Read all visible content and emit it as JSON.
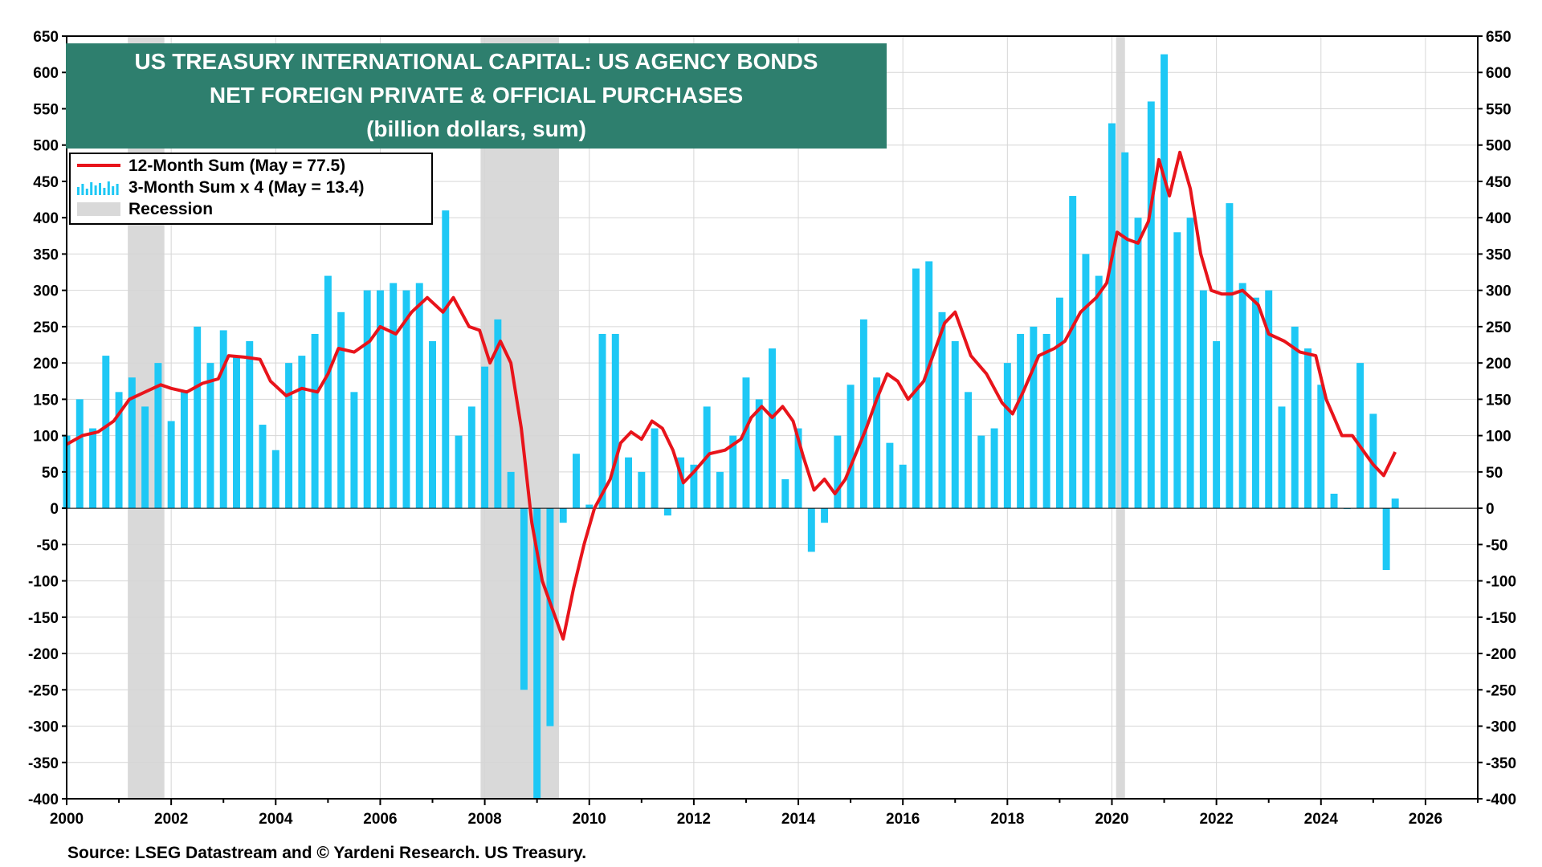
{
  "chart_data": {
    "type": "bar+line",
    "title_lines": [
      "US TREASURY INTERNATIONAL CAPITAL: US AGENCY BONDS",
      "NET FOREIGN PRIVATE & OFFICIAL PURCHASES",
      "(billion dollars, sum)"
    ],
    "source": "Source: LSEG Datastream and © Yardeni Research. US Treasury.",
    "xlim": [
      2000,
      2027
    ],
    "x_ticks": [
      "2000",
      "2002",
      "2004",
      "2006",
      "2008",
      "2010",
      "2012",
      "2014",
      "2016",
      "2018",
      "2020",
      "2022",
      "2024",
      "2026"
    ],
    "ylim": [
      -400,
      650
    ],
    "y_ticks": [
      650,
      600,
      550,
      500,
      450,
      400,
      350,
      300,
      250,
      200,
      150,
      100,
      50,
      0,
      -50,
      -100,
      -150,
      -200,
      -250,
      -300,
      -350,
      -400
    ],
    "grid": true,
    "legend_position": "top-left",
    "colors": {
      "line": "#e8141b",
      "bars": "#1ec8f5",
      "recession": "#d9d9d9",
      "title_bg": "#2e7f6e",
      "zero_line": "#000000"
    },
    "legend": [
      {
        "label": "12-Month Sum (May = 77.5)",
        "kind": "line"
      },
      {
        "label": "3-Month Sum x 4 (May = 13.4)",
        "kind": "bars"
      },
      {
        "label": "Recession",
        "kind": "shade"
      }
    ],
    "recessions": [
      [
        2001.17,
        2001.87
      ],
      [
        2007.92,
        2009.42
      ],
      [
        2020.08,
        2020.25
      ]
    ],
    "series": [
      {
        "name": "12-Month Sum (May = 77.5)",
        "type": "line",
        "x": [
          2000.0,
          2000.3,
          2000.6,
          2000.9,
          2001.2,
          2001.5,
          2001.8,
          2002.0,
          2002.3,
          2002.6,
          2002.9,
          2003.1,
          2003.4,
          2003.7,
          2003.9,
          2004.2,
          2004.5,
          2004.8,
          2005.0,
          2005.2,
          2005.5,
          2005.8,
          2006.0,
          2006.3,
          2006.6,
          2006.9,
          2007.2,
          2007.4,
          2007.7,
          2007.9,
          2008.1,
          2008.3,
          2008.5,
          2008.7,
          2008.9,
          2009.1,
          2009.3,
          2009.5,
          2009.7,
          2009.9,
          2010.1,
          2010.4,
          2010.6,
          2010.8,
          2011.0,
          2011.2,
          2011.4,
          2011.6,
          2011.8,
          2012.0,
          2012.3,
          2012.6,
          2012.9,
          2013.1,
          2013.3,
          2013.5,
          2013.7,
          2013.9,
          2014.1,
          2014.3,
          2014.5,
          2014.7,
          2014.9,
          2015.1,
          2015.3,
          2015.5,
          2015.7,
          2015.9,
          2016.1,
          2016.4,
          2016.6,
          2016.8,
          2017.0,
          2017.3,
          2017.6,
          2017.9,
          2018.1,
          2018.3,
          2018.6,
          2018.9,
          2019.1,
          2019.4,
          2019.7,
          2019.9,
          2020.1,
          2020.3,
          2020.5,
          2020.7,
          2020.9,
          2021.1,
          2021.3,
          2021.5,
          2021.7,
          2021.9,
          2022.1,
          2022.3,
          2022.5,
          2022.8,
          2023.0,
          2023.3,
          2023.6,
          2023.9,
          2024.1,
          2024.4,
          2024.6,
          2024.8,
          2025.0,
          2025.2,
          2025.42
        ],
        "values": [
          88,
          100,
          105,
          120,
          150,
          160,
          170,
          165,
          160,
          172,
          178,
          210,
          208,
          205,
          175,
          155,
          165,
          160,
          185,
          220,
          215,
          230,
          250,
          240,
          270,
          290,
          270,
          290,
          250,
          245,
          200,
          230,
          200,
          110,
          -20,
          -100,
          -140,
          -180,
          -110,
          -50,
          0,
          40,
          90,
          105,
          95,
          120,
          110,
          80,
          35,
          50,
          75,
          80,
          95,
          125,
          140,
          125,
          140,
          120,
          70,
          25,
          40,
          20,
          40,
          75,
          110,
          150,
          185,
          175,
          150,
          175,
          215,
          255,
          270,
          210,
          185,
          145,
          130,
          160,
          210,
          220,
          230,
          270,
          290,
          310,
          380,
          370,
          365,
          395,
          480,
          430,
          490,
          440,
          350,
          300,
          295,
          295,
          300,
          280,
          240,
          230,
          215,
          210,
          150,
          100,
          100,
          80,
          60,
          45,
          77.5
        ]
      },
      {
        "name": "3-Month Sum x 4 (May = 13.4)",
        "type": "bar",
        "x": [
          2000.0,
          2000.25,
          2000.5,
          2000.75,
          2001.0,
          2001.25,
          2001.5,
          2001.75,
          2002.0,
          2002.25,
          2002.5,
          2002.75,
          2003.0,
          2003.25,
          2003.5,
          2003.75,
          2004.0,
          2004.25,
          2004.5,
          2004.75,
          2005.0,
          2005.25,
          2005.5,
          2005.75,
          2006.0,
          2006.25,
          2006.5,
          2006.75,
          2007.0,
          2007.25,
          2007.5,
          2007.75,
          2008.0,
          2008.25,
          2008.5,
          2008.75,
          2009.0,
          2009.25,
          2009.5,
          2009.75,
          2010.0,
          2010.25,
          2010.5,
          2010.75,
          2011.0,
          2011.25,
          2011.5,
          2011.75,
          2012.0,
          2012.25,
          2012.5,
          2012.75,
          2013.0,
          2013.25,
          2013.5,
          2013.75,
          2014.0,
          2014.25,
          2014.5,
          2014.75,
          2015.0,
          2015.25,
          2015.5,
          2015.75,
          2016.0,
          2016.25,
          2016.5,
          2016.75,
          2017.0,
          2017.25,
          2017.5,
          2017.75,
          2018.0,
          2018.25,
          2018.5,
          2018.75,
          2019.0,
          2019.25,
          2019.5,
          2019.75,
          2020.0,
          2020.25,
          2020.5,
          2020.75,
          2021.0,
          2021.25,
          2021.5,
          2021.75,
          2022.0,
          2022.25,
          2022.5,
          2022.75,
          2023.0,
          2023.25,
          2023.5,
          2023.75,
          2024.0,
          2024.25,
          2024.5,
          2024.75,
          2025.0,
          2025.25,
          2025.42
        ],
        "values": [
          100,
          150,
          110,
          210,
          160,
          180,
          140,
          200,
          120,
          160,
          250,
          200,
          245,
          210,
          230,
          115,
          80,
          200,
          210,
          240,
          320,
          270,
          160,
          300,
          300,
          310,
          300,
          310,
          230,
          410,
          100,
          140,
          195,
          260,
          50,
          -250,
          -400,
          -300,
          -20,
          75,
          5,
          240,
          240,
          70,
          50,
          110,
          -10,
          70,
          60,
          140,
          50,
          100,
          180,
          150,
          220,
          40,
          110,
          -60,
          -20,
          100,
          170,
          260,
          180,
          90,
          60,
          330,
          340,
          270,
          230,
          160,
          100,
          110,
          200,
          240,
          250,
          240,
          290,
          430,
          350,
          320,
          530,
          490,
          400,
          560,
          625,
          380,
          400,
          300,
          230,
          420,
          310,
          290,
          300,
          140,
          250,
          220,
          170,
          20,
          0,
          200,
          130,
          -85,
          13.4
        ]
      }
    ]
  }
}
